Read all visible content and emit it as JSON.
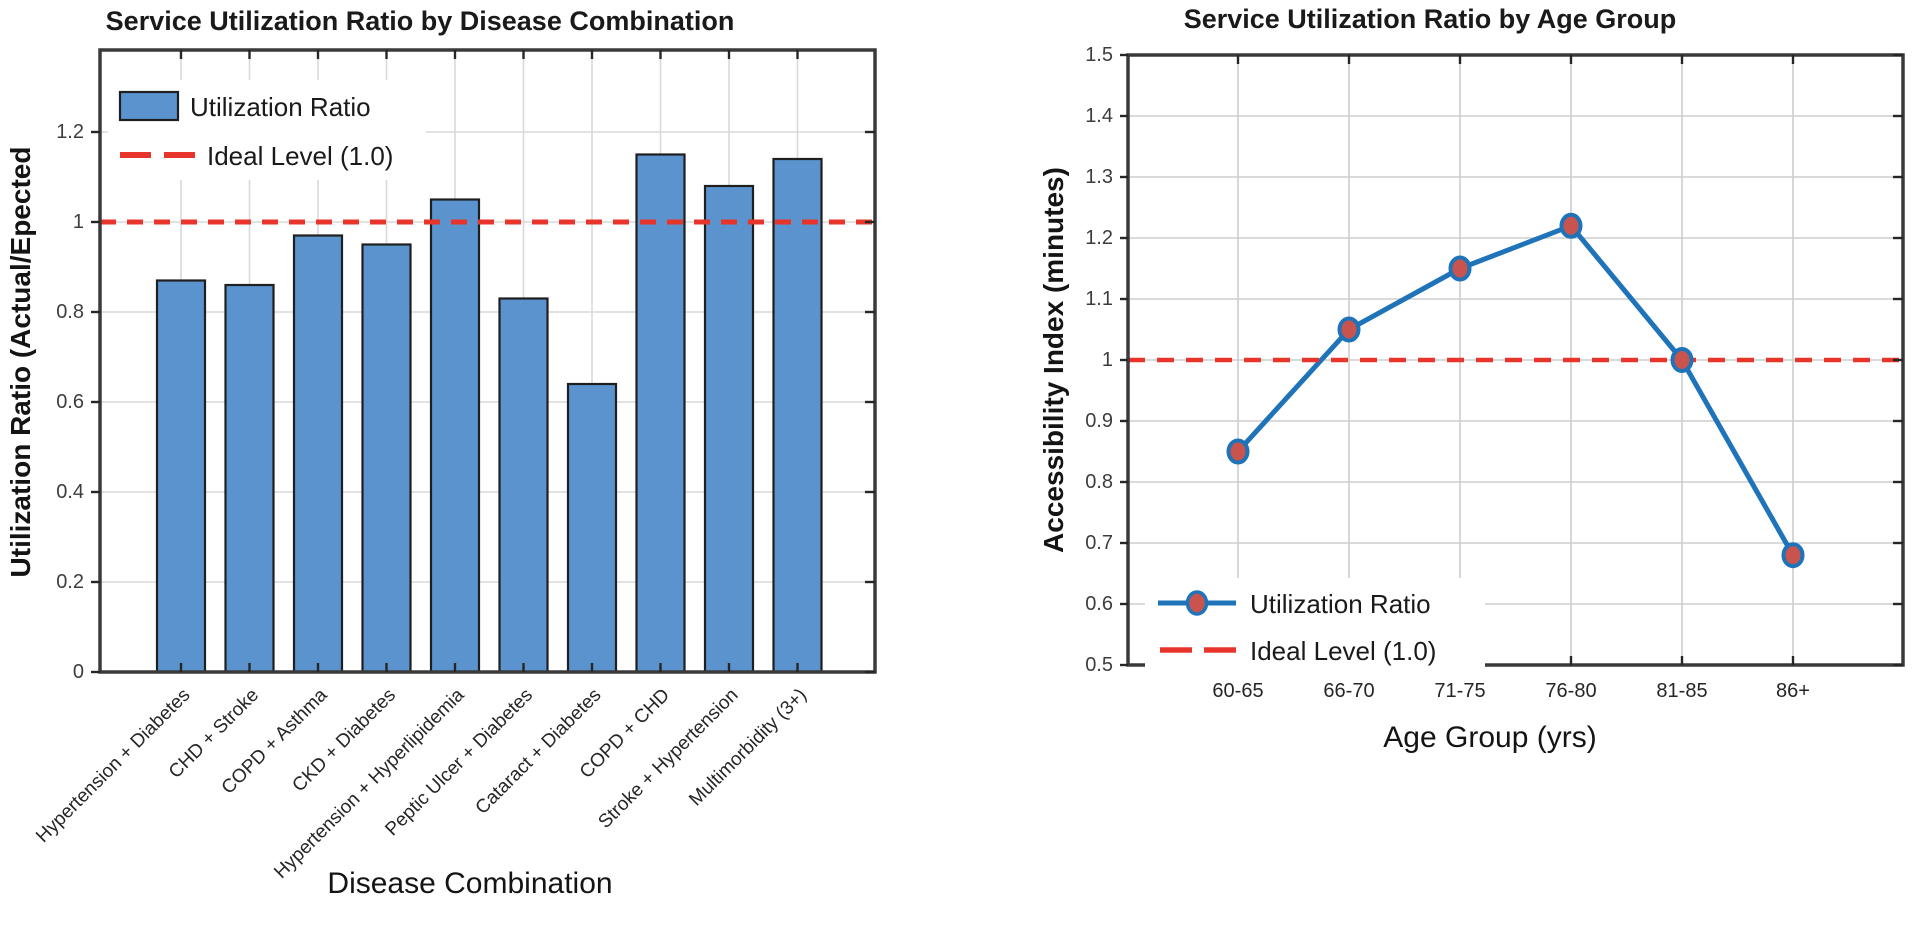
{
  "figure": {
    "background": "#ffffff"
  },
  "chart_data": [
    {
      "type": "bar",
      "title": "Service Utilization Ratio by Disease Combination",
      "xlabel": "Disease Combination",
      "ylabel": "Utilization Ratio (Actual/Epected",
      "categories": [
        "Hypertension + Diabetes",
        "CHD + Stroke",
        "COPD + Asthma",
        "CKD + Diabetes",
        "Hypertension + Hyperlipidemia",
        "Peptic Ulcer + Diabetes",
        "Cataract + Diabetes",
        "COPD + CHD",
        "Stroke + Hypertension",
        "Multimorbidity (3+)"
      ],
      "values": [
        0.87,
        0.86,
        0.97,
        0.95,
        1.05,
        0.83,
        0.64,
        1.15,
        1.08,
        1.14
      ],
      "yticks": [
        0,
        0.2,
        0.4,
        0.6,
        0.8,
        1.0,
        1.2
      ],
      "ytick_labels": [
        "0",
        "0.2",
        "0.4",
        "0.6",
        "0.8",
        "1",
        "1.2"
      ],
      "ylim": [
        0,
        1.38
      ],
      "grid": true,
      "reference_line": {
        "value": 1.0,
        "style": "dashed"
      },
      "legend_position": "top-left-inside",
      "legend": [
        {
          "label": "Utilization Ratio",
          "type": "bar-swatch"
        },
        {
          "label": "Ideal Level (1.0)",
          "type": "dashed-line"
        }
      ],
      "colors": {
        "bar_fill": "#5B93CE",
        "bar_edge": "#1F1F1F",
        "reference": "#E8352C",
        "grid": "#D9D9D9",
        "axis": "#3A3A3A",
        "tick_text": "#3D3D3D",
        "text": "#141414"
      }
    },
    {
      "type": "line",
      "title": "Service Utilization Ratio by Age Group",
      "xlabel": "Age Group (yrs)",
      "ylabel": "Accessibility Index (minutes)",
      "categories": [
        "60-65",
        "66-70",
        "71-75",
        "76-80",
        "81-85",
        "86+"
      ],
      "values": [
        0.85,
        1.05,
        1.15,
        1.22,
        1.0,
        0.68
      ],
      "yticks": [
        0.5,
        0.6,
        0.7,
        0.8,
        0.9,
        1.0,
        1.1,
        1.2,
        1.3,
        1.4,
        1.5
      ],
      "ytick_labels": [
        "0.5",
        "0.6",
        "0.7",
        "0.8",
        "0.9",
        "1",
        "1.1",
        "1.2",
        "1.3",
        "1.4",
        "1.5"
      ],
      "ylim": [
        0.5,
        1.5
      ],
      "grid": true,
      "reference_line": {
        "value": 1.0,
        "style": "dashed"
      },
      "legend_position": "bottom-left-inside",
      "legend": [
        {
          "label": "Utilization Ratio",
          "type": "line-marker"
        },
        {
          "label": "Ideal Level (1.0)",
          "type": "dashed-line"
        }
      ],
      "colors": {
        "line": "#1E73B9",
        "marker_fill": "#C9544D",
        "marker_edge": "#1E73B9",
        "reference": "#E8352C",
        "grid": "#CDCDCD",
        "axis": "#3A3A3A",
        "tick_text": "#3D3D3D",
        "text": "#141414"
      }
    }
  ]
}
